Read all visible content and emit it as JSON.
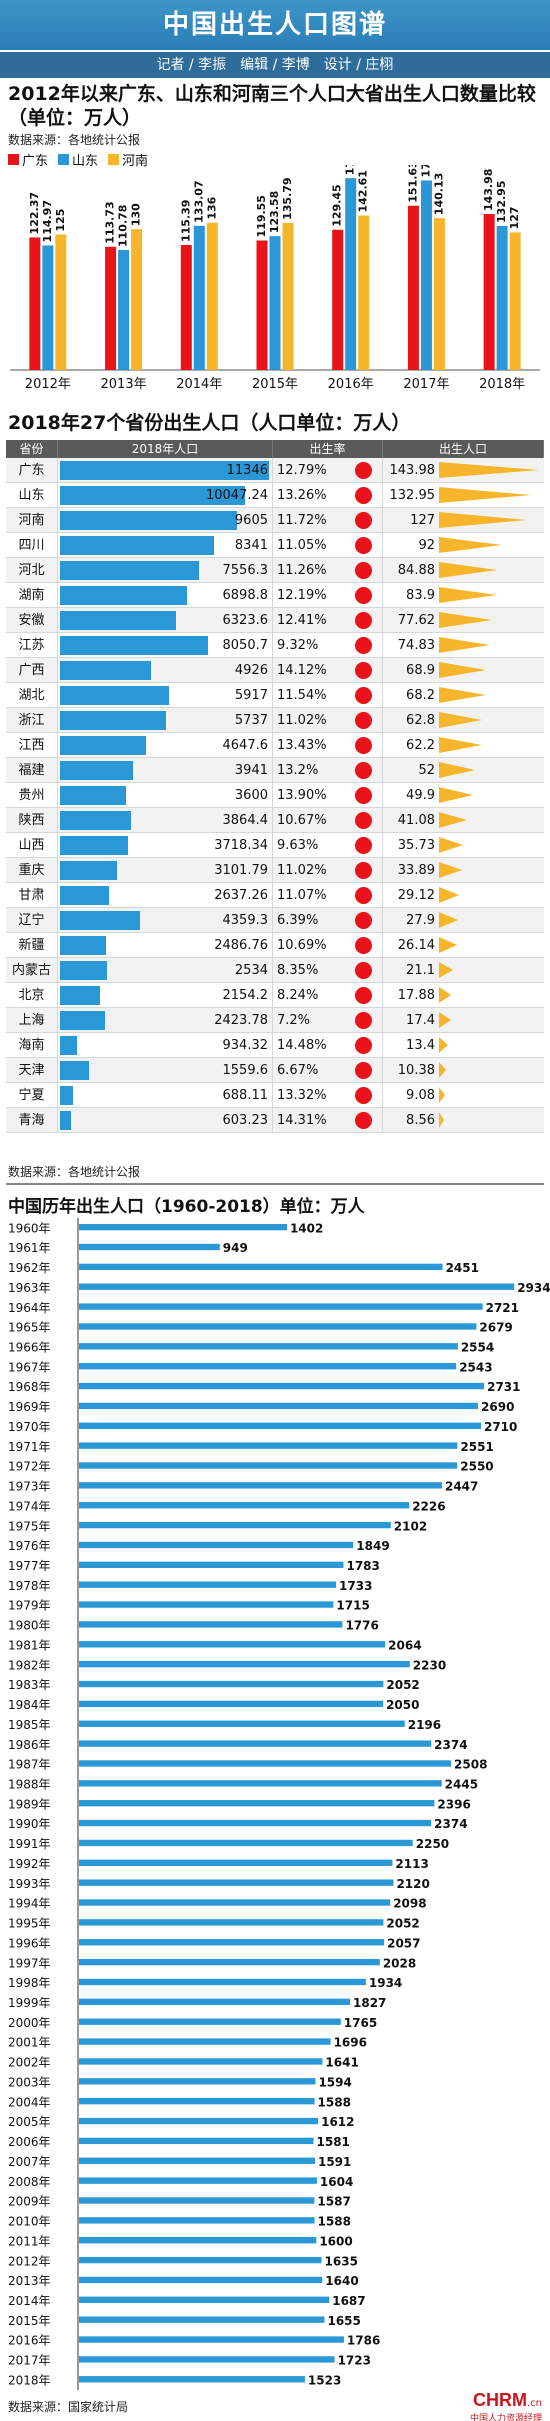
{
  "banner": {
    "title": "中国出生人口图谱"
  },
  "credits": {
    "text": "记者 / 李振　编辑 / 李博　设计 / 庄栩"
  },
  "section1": {
    "title": "2012年以来广东、山东和河南三个人口大省出生人口数量比较（单位：万人）",
    "source": "数据来源：各地统计公报"
  },
  "section2": {
    "title": "2018年27个省份出生人口（人口单位：万人）",
    "headers": {
      "province": "省份",
      "births_2018": "2018年人口",
      "birth_rate": "出生率",
      "births": "出生人口"
    },
    "source": "数据来源：各地统计公报"
  },
  "section3": {
    "title": "中国历年出生人口（1960-2018）单位：万人"
  },
  "footer": {
    "source": "数据来源：国家统计局",
    "logo": "CHRM",
    "logo_suffix": ".cn",
    "logo_sub": "中国人力资源经理"
  },
  "colors": {
    "guangdong": "#e8141a",
    "shandong": "#2a97d6",
    "henan": "#f7b52c",
    "bar_blue": "#2a97d6",
    "dot_red": "#e8141a",
    "triangle_yellow": "#f7b52c",
    "banner": "#2e86c1"
  },
  "chart_data": [
    {
      "type": "bar",
      "categories": [
        "2012年",
        "2013年",
        "2014年",
        "2015年",
        "2016年",
        "2017年",
        "2018年"
      ],
      "series": [
        {
          "name": "广东",
          "values": [
            122.37,
            113.73,
            115.39,
            119.55,
            129.45,
            151.63,
            143.98
          ]
        },
        {
          "name": "山东",
          "values": [
            114.97,
            110.78,
            133.07,
            123.58,
            177.06,
            174.98,
            132.95
          ]
        },
        {
          "name": "河南",
          "values": [
            125,
            130,
            136,
            135.79,
            142.61,
            140.13,
            127
          ]
        }
      ],
      "ylim": [
        0,
        180
      ]
    },
    {
      "type": "table",
      "columns": [
        "省份",
        "2018年人口",
        "出生率",
        "出生人口"
      ],
      "rows": [
        [
          "广东",
          "11346",
          "12.79%",
          "143.98"
        ],
        [
          "山东",
          "10047.24",
          "13.26%",
          "132.95"
        ],
        [
          "河南",
          "9605",
          "11.72%",
          "127"
        ],
        [
          "四川",
          "8341",
          "11.05%",
          "92"
        ],
        [
          "河北",
          "7556.3",
          "11.26%",
          "84.88"
        ],
        [
          "湖南",
          "6898.8",
          "12.19%",
          "83.9"
        ],
        [
          "安徽",
          "6323.6",
          "12.41%",
          "77.62"
        ],
        [
          "江苏",
          "8050.7",
          "9.32%",
          "74.83"
        ],
        [
          "广西",
          "4926",
          "14.12%",
          "68.9"
        ],
        [
          "湖北",
          "5917",
          "11.54%",
          "68.2"
        ],
        [
          "浙江",
          "5737",
          "11.02%",
          "62.8"
        ],
        [
          "江西",
          "4647.6",
          "13.43%",
          "62.2"
        ],
        [
          "福建",
          "3941",
          "13.2%",
          "52"
        ],
        [
          "贵州",
          "3600",
          "13.90%",
          "49.9"
        ],
        [
          "陕西",
          "3864.4",
          "10.67%",
          "41.08"
        ],
        [
          "山西",
          "3718.34",
          "9.63%",
          "35.73"
        ],
        [
          "重庆",
          "3101.79",
          "11.02%",
          "33.89"
        ],
        [
          "甘肃",
          "2637.26",
          "11.07%",
          "29.12"
        ],
        [
          "辽宁",
          "4359.3",
          "6.39%",
          "27.9"
        ],
        [
          "新疆",
          "2486.76",
          "10.69%",
          "26.14"
        ],
        [
          "内蒙古",
          "2534",
          "8.35%",
          "21.1"
        ],
        [
          "北京",
          "2154.2",
          "8.24%",
          "17.88"
        ],
        [
          "上海",
          "2423.78",
          "7.2%",
          "17.4"
        ],
        [
          "海南",
          "934.32",
          "14.48%",
          "13.4"
        ],
        [
          "天津",
          "1559.6",
          "6.67%",
          "10.38"
        ],
        [
          "宁夏",
          "688.11",
          "13.32%",
          "9.08"
        ],
        [
          "青海",
          "603.23",
          "14.31%",
          "8.56"
        ]
      ]
    },
    {
      "type": "bar",
      "orientation": "horizontal",
      "categories": [
        "1960年",
        "1961年",
        "1962年",
        "1963年",
        "1964年",
        "1965年",
        "1966年",
        "1967年",
        "1968年",
        "1969年",
        "1970年",
        "1971年",
        "1972年",
        "1973年",
        "1974年",
        "1975年",
        "1976年",
        "1977年",
        "1978年",
        "1979年",
        "1980年",
        "1981年",
        "1982年",
        "1983年",
        "1984年",
        "1985年",
        "1986年",
        "1987年",
        "1988年",
        "1989年",
        "1990年",
        "1991年",
        "1992年",
        "1993年",
        "1994年",
        "1995年",
        "1996年",
        "1997年",
        "1998年",
        "1999年",
        "2000年",
        "2001年",
        "2002年",
        "2003年",
        "2004年",
        "2005年",
        "2006年",
        "2007年",
        "2008年",
        "2009年",
        "2010年",
        "2011年",
        "2012年",
        "2013年",
        "2014年",
        "2015年",
        "2016年",
        "2017年",
        "2018年"
      ],
      "values": [
        1402,
        949,
        2451,
        2934,
        2721,
        2679,
        2554,
        2543,
        2731,
        2690,
        2710,
        2551,
        2550,
        2447,
        2226,
        2102,
        1849,
        1783,
        1733,
        1715,
        1776,
        2064,
        2230,
        2052,
        2050,
        2196,
        2374,
        2508,
        2445,
        2396,
        2374,
        2250,
        2113,
        2120,
        2098,
        2052,
        2057,
        2028,
        1934,
        1827,
        1765,
        1696,
        1641,
        1594,
        1588,
        1612,
        1581,
        1591,
        1604,
        1587,
        1588,
        1600,
        1635,
        1640,
        1687,
        1655,
        1786,
        1723,
        1523
      ],
      "xlim": [
        0,
        3000
      ]
    }
  ]
}
